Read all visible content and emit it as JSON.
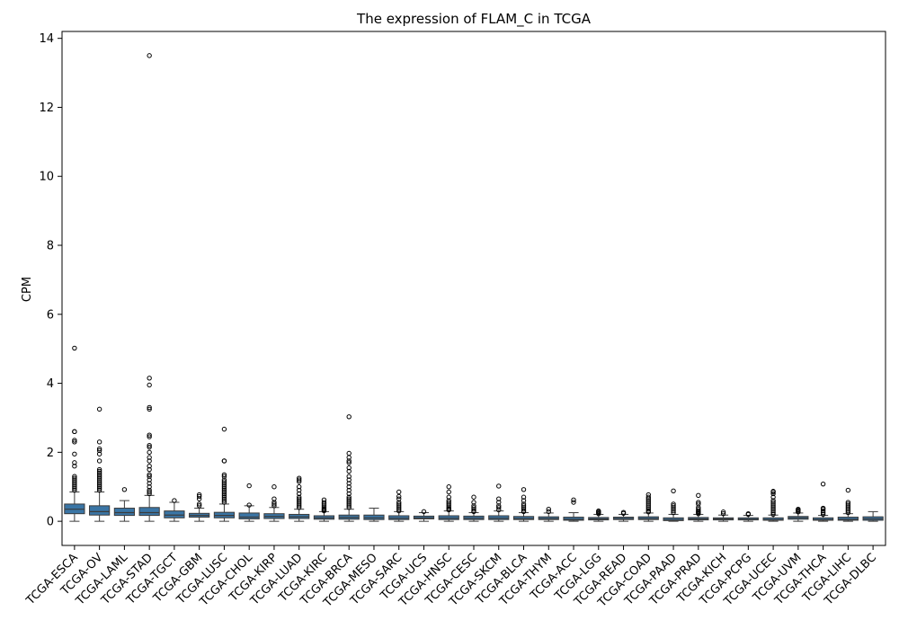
{
  "chart_data": {
    "type": "box",
    "title": "The expression of FLAM_C in TCGA",
    "xlabel": "",
    "ylabel": "CPM",
    "ylim": [
      -0.7,
      14.2
    ],
    "yticks": [
      0,
      2,
      4,
      6,
      8,
      10,
      12,
      14
    ],
    "box_color": "#3a75a5",
    "categories": [
      "TCGA-ESCA",
      "TCGA-OV",
      "TCGA-LAML",
      "TCGA-STAD",
      "TCGA-TGCT",
      "TCGA-GBM",
      "TCGA-LUSC",
      "TCGA-CHOL",
      "TCGA-KIRP",
      "TCGA-LUAD",
      "TCGA-KIRC",
      "TCGA-BRCA",
      "TCGA-MESO",
      "TCGA-SARC",
      "TCGA-UCS",
      "TCGA-HNSC",
      "TCGA-CESC",
      "TCGA-SKCM",
      "TCGA-BLCA",
      "TCGA-THYM",
      "TCGA-ACC",
      "TCGA-LGG",
      "TCGA-READ",
      "TCGA-COAD",
      "TCGA-PAAD",
      "TCGA-PRAD",
      "TCGA-KICH",
      "TCGA-PCPG",
      "TCGA-UCEC",
      "TCGA-UVM",
      "TCGA-THCA",
      "TCGA-LIHC",
      "TCGA-DLBC"
    ],
    "boxes": [
      {
        "q1": 0.22,
        "median": 0.35,
        "q3": 0.5,
        "whislo": 0.0,
        "whishi": 0.85,
        "fliers": [
          0.9,
          0.95,
          1.0,
          1.05,
          1.1,
          1.15,
          1.2,
          1.25,
          1.3,
          1.6,
          1.7,
          1.95,
          2.3,
          2.35,
          2.6,
          2.6,
          5.02
        ]
      },
      {
        "q1": 0.18,
        "median": 0.28,
        "q3": 0.45,
        "whislo": 0.0,
        "whishi": 0.85,
        "fliers": [
          0.9,
          0.95,
          1.0,
          1.05,
          1.1,
          1.15,
          1.2,
          1.25,
          1.3,
          1.35,
          1.4,
          1.45,
          1.5,
          1.75,
          1.95,
          2.05,
          2.1,
          2.3,
          3.25
        ]
      },
      {
        "q1": 0.17,
        "median": 0.25,
        "q3": 0.38,
        "whislo": 0.0,
        "whishi": 0.6,
        "fliers": [
          0.92
        ]
      },
      {
        "q1": 0.17,
        "median": 0.25,
        "q3": 0.4,
        "whislo": 0.0,
        "whishi": 0.75,
        "fliers": [
          0.8,
          0.85,
          0.9,
          1.0,
          1.1,
          1.2,
          1.3,
          1.35,
          1.5,
          1.6,
          1.75,
          1.85,
          2.0,
          2.15,
          2.2,
          2.45,
          2.5,
          3.25,
          3.3,
          3.95,
          4.15,
          13.5
        ]
      },
      {
        "q1": 0.1,
        "median": 0.18,
        "q3": 0.3,
        "whislo": 0.0,
        "whishi": 0.55,
        "fliers": [
          0.6
        ]
      },
      {
        "q1": 0.12,
        "median": 0.17,
        "q3": 0.23,
        "whislo": 0.0,
        "whishi": 0.38,
        "fliers": [
          0.45,
          0.5,
          0.65,
          0.72,
          0.77
        ]
      },
      {
        "q1": 0.1,
        "median": 0.17,
        "q3": 0.26,
        "whislo": 0.0,
        "whishi": 0.5,
        "fliers": [
          0.55,
          0.6,
          0.65,
          0.7,
          0.75,
          0.8,
          0.85,
          0.9,
          0.95,
          1.0,
          1.05,
          1.1,
          1.15,
          1.2,
          1.3,
          1.35,
          1.75,
          1.75,
          2.67
        ]
      },
      {
        "q1": 0.07,
        "median": 0.12,
        "q3": 0.24,
        "whislo": 0.0,
        "whishi": 0.45,
        "fliers": [
          0.47,
          1.03
        ]
      },
      {
        "q1": 0.08,
        "median": 0.14,
        "q3": 0.22,
        "whislo": 0.0,
        "whishi": 0.4,
        "fliers": [
          0.45,
          0.5,
          0.55,
          0.65,
          1.0
        ]
      },
      {
        "q1": 0.08,
        "median": 0.13,
        "q3": 0.2,
        "whislo": 0.0,
        "whishi": 0.35,
        "fliers": [
          0.4,
          0.45,
          0.5,
          0.55,
          0.6,
          0.65,
          0.7,
          0.8,
          0.9,
          1.0,
          1.15,
          1.2,
          1.25
        ]
      },
      {
        "q1": 0.06,
        "median": 0.1,
        "q3": 0.16,
        "whislo": 0.0,
        "whishi": 0.28,
        "fliers": [
          0.3,
          0.33,
          0.36,
          0.4,
          0.45,
          0.5,
          0.55,
          0.62
        ]
      },
      {
        "q1": 0.06,
        "median": 0.11,
        "q3": 0.18,
        "whislo": 0.0,
        "whishi": 0.35,
        "fliers": [
          0.4,
          0.45,
          0.5,
          0.55,
          0.6,
          0.65,
          0.7,
          0.8,
          0.9,
          1.0,
          1.1,
          1.2,
          1.3,
          1.45,
          1.55,
          1.7,
          1.75,
          1.85,
          1.97,
          3.03
        ]
      },
      {
        "q1": 0.05,
        "median": 0.1,
        "q3": 0.18,
        "whislo": 0.0,
        "whishi": 0.38,
        "fliers": []
      },
      {
        "q1": 0.05,
        "median": 0.09,
        "q3": 0.16,
        "whislo": 0.0,
        "whishi": 0.28,
        "fliers": [
          0.3,
          0.35,
          0.4,
          0.45,
          0.5,
          0.55,
          0.65,
          0.72,
          0.85
        ]
      },
      {
        "q1": 0.07,
        "median": 0.1,
        "q3": 0.15,
        "whislo": 0.0,
        "whishi": 0.25,
        "fliers": [
          0.28
        ]
      },
      {
        "q1": 0.05,
        "median": 0.09,
        "q3": 0.16,
        "whislo": 0.0,
        "whishi": 0.3,
        "fliers": [
          0.33,
          0.36,
          0.4,
          0.45,
          0.5,
          0.55,
          0.6,
          0.7,
          0.85,
          1.0
        ]
      },
      {
        "q1": 0.05,
        "median": 0.09,
        "q3": 0.15,
        "whislo": 0.0,
        "whishi": 0.25,
        "fliers": [
          0.28,
          0.3,
          0.35,
          0.4,
          0.45,
          0.55,
          0.7
        ]
      },
      {
        "q1": 0.05,
        "median": 0.09,
        "q3": 0.16,
        "whislo": 0.0,
        "whishi": 0.3,
        "fliers": [
          0.33,
          0.4,
          0.45,
          0.55,
          0.65,
          1.02
        ]
      },
      {
        "q1": 0.05,
        "median": 0.08,
        "q3": 0.14,
        "whislo": 0.0,
        "whishi": 0.25,
        "fliers": [
          0.28,
          0.3,
          0.35,
          0.4,
          0.45,
          0.5,
          0.6,
          0.7,
          0.92
        ]
      },
      {
        "q1": 0.05,
        "median": 0.08,
        "q3": 0.13,
        "whislo": 0.0,
        "whishi": 0.24,
        "fliers": [
          0.28,
          0.35
        ]
      },
      {
        "q1": 0.03,
        "median": 0.06,
        "q3": 0.12,
        "whislo": 0.0,
        "whishi": 0.25,
        "fliers": [
          0.55,
          0.62
        ]
      },
      {
        "q1": 0.04,
        "median": 0.07,
        "q3": 0.11,
        "whislo": 0.0,
        "whishi": 0.2,
        "fliers": [
          0.22,
          0.25,
          0.28,
          0.3
        ]
      },
      {
        "q1": 0.05,
        "median": 0.08,
        "q3": 0.12,
        "whislo": 0.0,
        "whishi": 0.2,
        "fliers": [
          0.23,
          0.26
        ]
      },
      {
        "q1": 0.05,
        "median": 0.08,
        "q3": 0.13,
        "whislo": 0.0,
        "whishi": 0.24,
        "fliers": [
          0.27,
          0.3,
          0.35,
          0.4,
          0.45,
          0.5,
          0.55,
          0.6,
          0.65,
          0.7,
          0.77
        ]
      },
      {
        "q1": 0.02,
        "median": 0.05,
        "q3": 0.1,
        "whislo": 0.0,
        "whishi": 0.2,
        "fliers": [
          0.25,
          0.3,
          0.35,
          0.4,
          0.45,
          0.5,
          0.88
        ]
      },
      {
        "q1": 0.04,
        "median": 0.07,
        "q3": 0.11,
        "whislo": 0.0,
        "whishi": 0.2,
        "fliers": [
          0.22,
          0.25,
          0.28,
          0.3,
          0.35,
          0.4,
          0.5,
          0.55,
          0.75
        ]
      },
      {
        "q1": 0.04,
        "median": 0.07,
        "q3": 0.1,
        "whislo": 0.0,
        "whishi": 0.18,
        "fliers": [
          0.22,
          0.27
        ]
      },
      {
        "q1": 0.04,
        "median": 0.06,
        "q3": 0.1,
        "whislo": 0.0,
        "whishi": 0.17,
        "fliers": [
          0.2,
          0.22
        ]
      },
      {
        "q1": 0.03,
        "median": 0.05,
        "q3": 0.1,
        "whislo": 0.0,
        "whishi": 0.18,
        "fliers": [
          0.2,
          0.25,
          0.3,
          0.35,
          0.4,
          0.45,
          0.5,
          0.55,
          0.6,
          0.7,
          0.8,
          0.85,
          0.87
        ]
      },
      {
        "q1": 0.06,
        "median": 0.1,
        "q3": 0.14,
        "whislo": 0.0,
        "whishi": 0.24,
        "fliers": [
          0.27,
          0.3,
          0.33,
          0.35
        ]
      },
      {
        "q1": 0.03,
        "median": 0.05,
        "q3": 0.1,
        "whislo": 0.0,
        "whishi": 0.17,
        "fliers": [
          0.2,
          0.25,
          0.3,
          0.35,
          0.38,
          1.08
        ]
      },
      {
        "q1": 0.03,
        "median": 0.06,
        "q3": 0.12,
        "whislo": 0.0,
        "whishi": 0.22,
        "fliers": [
          0.25,
          0.3,
          0.35,
          0.4,
          0.45,
          0.5,
          0.55,
          0.9
        ]
      },
      {
        "q1": 0.03,
        "median": 0.07,
        "q3": 0.13,
        "whislo": 0.0,
        "whishi": 0.28,
        "fliers": []
      }
    ]
  }
}
